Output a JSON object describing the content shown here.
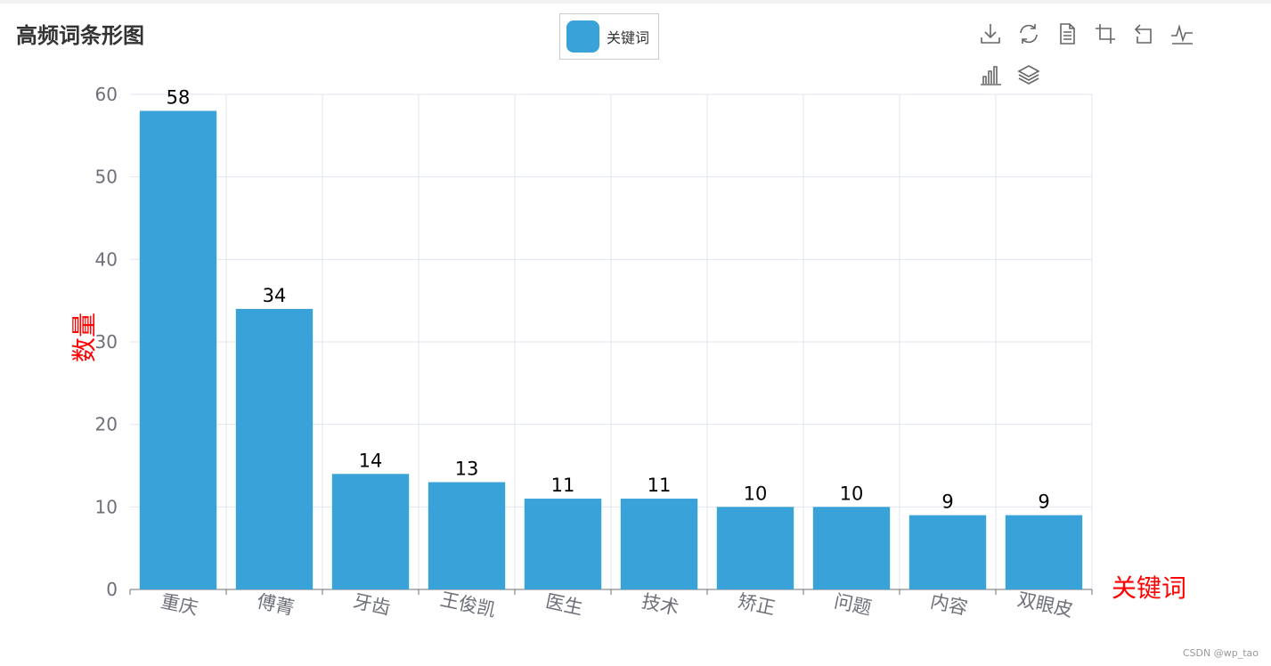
{
  "title": "高频词条形图",
  "legend": {
    "label": "关键词"
  },
  "toolbox": {
    "icons": [
      "download-icon",
      "refresh-icon",
      "data-view-icon",
      "zoom-select-icon",
      "zoom-back-icon",
      "line-chart-icon",
      "bar-chart-icon",
      "stack-icon"
    ]
  },
  "colors": {
    "bar": "#39a2d8",
    "axis_label": "#ff0000",
    "tick_label": "#6e7079",
    "grid": "#e0e6f1",
    "axis_line": "#6e7079",
    "data_label": "#000000"
  },
  "chart_data": {
    "type": "bar",
    "title": "高频词条形图",
    "categories": [
      "重庆",
      "傅菁",
      "牙齿",
      "王俊凯",
      "医生",
      "技术",
      "矫正",
      "问题",
      "内容",
      "双眼皮"
    ],
    "series": [
      {
        "name": "关键词",
        "values": [
          58,
          34,
          14,
          13,
          11,
          11,
          10,
          10,
          9,
          9
        ]
      }
    ],
    "xlabel": "关键词",
    "ylabel": "数量",
    "ylim": [
      0,
      60
    ],
    "yticks": [
      0,
      10,
      20,
      30,
      40,
      50,
      60
    ],
    "grid": true,
    "legend_position": "top-center"
  },
  "watermark": "CSDN @wp_tao"
}
